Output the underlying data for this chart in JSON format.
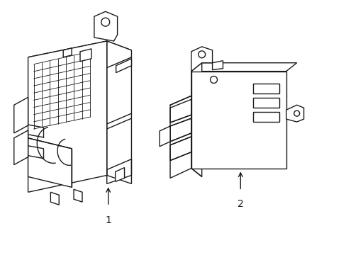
{
  "background_color": "#ffffff",
  "line_color": "#1a1a1a",
  "line_width": 1.0,
  "label1": "1",
  "label2": "2",
  "fig_width": 4.89,
  "fig_height": 3.6,
  "dpi": 100
}
